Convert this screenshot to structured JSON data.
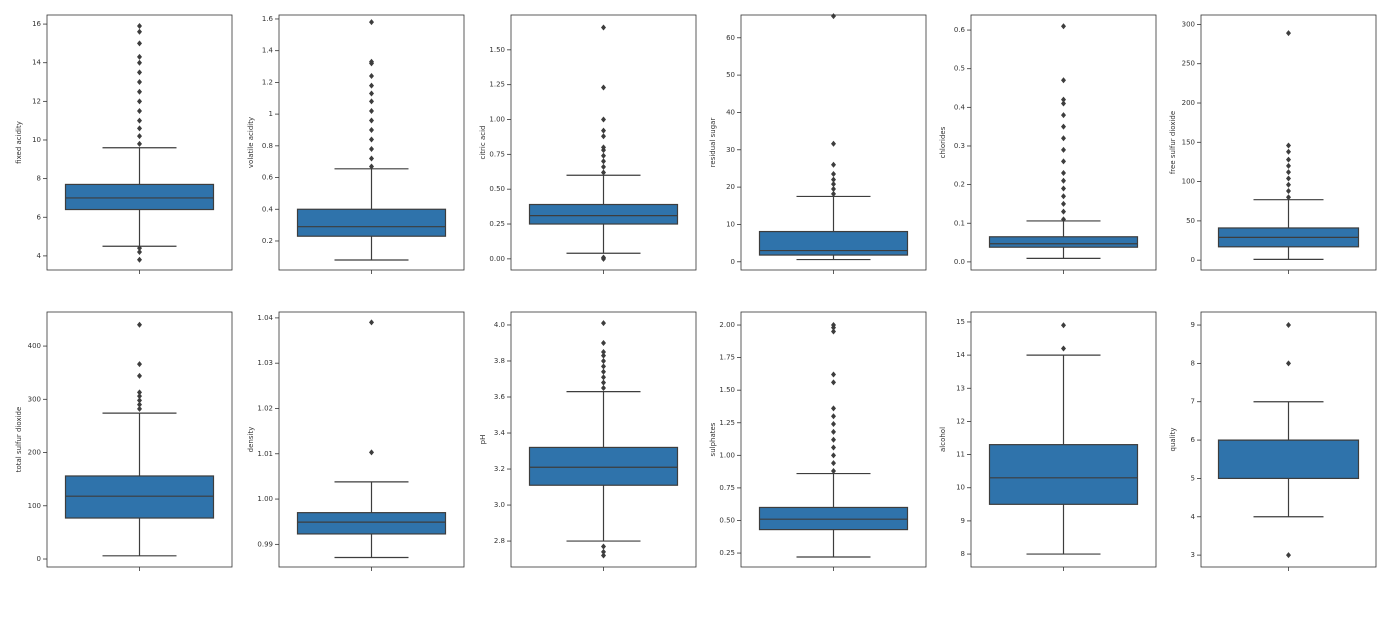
{
  "chart_data": [
    {
      "type": "box",
      "ylabel": "fixed acidity",
      "color": "#2f73ab",
      "ylim": [
        3.27,
        16.47
      ],
      "yticks": [
        4,
        6,
        8,
        10,
        12,
        14,
        16
      ],
      "whislo": 4.5,
      "q1": 6.4,
      "med": 7.0,
      "q3": 7.7,
      "whishi": 9.6,
      "fliers": [
        3.8,
        4.2,
        4.4,
        9.8,
        10.2,
        10.6,
        11.0,
        11.5,
        12.0,
        12.5,
        13.0,
        13.5,
        14.0,
        14.3,
        15.0,
        15.6,
        15.9
      ]
    },
    {
      "type": "box",
      "ylabel": "volatile acidity",
      "color": "#2f73ab",
      "ylim": [
        0.017,
        1.625
      ],
      "yticks": [
        0.2,
        0.4,
        0.6,
        0.8,
        1.0,
        1.2,
        1.4,
        1.6
      ],
      "whislo": 0.08,
      "q1": 0.23,
      "med": 0.29,
      "q3": 0.4,
      "whishi": 0.655,
      "fliers": [
        0.67,
        0.72,
        0.78,
        0.84,
        0.9,
        0.96,
        1.02,
        1.08,
        1.13,
        1.18,
        1.24,
        1.32,
        1.33,
        1.58
      ]
    },
    {
      "type": "box",
      "ylabel": "citric acid",
      "color": "#2f73ab",
      "ylim": [
        -0.08,
        1.75
      ],
      "yticks": [
        {
          "value": 0,
          "label": "0.00"
        },
        0.25,
        {
          "value": 0.5,
          "label": "0.50"
        },
        0.75,
        {
          "value": 1,
          "label": "1.00"
        },
        1.25,
        {
          "value": 1.5,
          "label": "1.50"
        }
      ],
      "whislo": 0.04,
      "q1": 0.25,
      "med": 0.31,
      "q3": 0.39,
      "whishi": 0.6,
      "fliers": [
        0,
        0.01,
        0.62,
        0.66,
        0.7,
        0.74,
        0.78,
        0.8,
        0.88,
        0.92,
        1.0,
        1.23,
        1.66
      ]
    },
    {
      "type": "box",
      "ylabel": "residual sugar",
      "color": "#2f73ab",
      "ylim": [
        -2.2,
        66.1
      ],
      "yticks": [
        0,
        10,
        20,
        30,
        40,
        50,
        60
      ],
      "whislo": 0.6,
      "q1": 1.8,
      "med": 3.0,
      "q3": 8.1,
      "whishi": 17.5,
      "fliers": [
        18.2,
        19.5,
        20.8,
        22.0,
        23.5,
        26.0,
        31.6,
        65.8
      ]
    },
    {
      "type": "box",
      "ylabel": "chlorides",
      "color": "#2f73ab",
      "ylim": [
        -0.021,
        0.639
      ],
      "yticks": [
        {
          "value": 0,
          "label": "0.0"
        },
        0.1,
        0.2,
        0.3,
        0.4,
        0.5,
        0.6
      ],
      "whislo": 0.009,
      "q1": 0.038,
      "med": 0.047,
      "q3": 0.065,
      "whishi": 0.106,
      "fliers": [
        0.11,
        0.13,
        0.15,
        0.17,
        0.19,
        0.21,
        0.23,
        0.26,
        0.29,
        0.32,
        0.35,
        0.38,
        0.41,
        0.42,
        0.47,
        0.61
      ]
    },
    {
      "type": "box",
      "ylabel": "free sulfur dioxide",
      "color": "#2f73ab",
      "ylim": [
        -12.5,
        312
      ],
      "yticks": [
        0,
        50,
        100,
        150,
        200,
        250,
        300
      ],
      "whislo": 1,
      "q1": 17,
      "med": 29,
      "q3": 41,
      "whishi": 77,
      "fliers": [
        80,
        88,
        96,
        104,
        112,
        120,
        128,
        138,
        146,
        289
      ]
    },
    {
      "type": "box",
      "ylabel": "total sulfur dioxide",
      "color": "#2f73ab",
      "ylim": [
        -15,
        464
      ],
      "yticks": [
        0,
        100,
        200,
        300,
        400
      ],
      "whislo": 6,
      "q1": 77,
      "med": 118,
      "q3": 156,
      "whishi": 274,
      "fliers": [
        282,
        290,
        298,
        306,
        313,
        344,
        366,
        440
      ]
    },
    {
      "type": "box",
      "ylabel": "density",
      "color": "#2f73ab",
      "ylim": [
        0.985,
        1.0413
      ],
      "yticks": [
        0.99,
        {
          "value": 1,
          "label": "1.00"
        },
        1.01,
        1.02,
        1.03,
        1.04
      ],
      "whislo": 0.9871,
      "q1": 0.9923,
      "med": 0.9949,
      "q3": 0.997,
      "whishi": 1.0038,
      "fliers": [
        1.0103,
        1.039
      ]
    },
    {
      "type": "box",
      "ylabel": "pH",
      "color": "#2f73ab",
      "ylim": [
        2.656,
        4.072
      ],
      "yticks": [
        2.8,
        {
          "value": 3,
          "label": "3.0"
        },
        3.2,
        3.4,
        3.6,
        3.8,
        {
          "value": 4,
          "label": "4.0"
        }
      ],
      "whislo": 2.8,
      "q1": 3.11,
      "med": 3.21,
      "q3": 3.32,
      "whishi": 3.63,
      "fliers": [
        2.72,
        2.74,
        2.77,
        3.65,
        3.68,
        3.71,
        3.74,
        3.77,
        3.8,
        3.83,
        3.85,
        3.9,
        4.01
      ]
    },
    {
      "type": "box",
      "ylabel": "sulphates",
      "color": "#2f73ab",
      "ylim": [
        0.143,
        2.1
      ],
      "yticks": [
        0.25,
        {
          "value": 0.5,
          "label": "0.50"
        },
        0.75,
        {
          "value": 1,
          "label": "1.00"
        },
        1.25,
        {
          "value": 1.5,
          "label": "1.50"
        },
        1.75,
        {
          "value": 2,
          "label": "2.00"
        }
      ],
      "whislo": 0.22,
      "q1": 0.43,
      "med": 0.51,
      "q3": 0.6,
      "whishi": 0.86,
      "fliers": [
        0.88,
        0.94,
        1.0,
        1.06,
        1.12,
        1.18,
        1.24,
        1.3,
        1.36,
        1.56,
        1.62,
        1.95,
        1.98,
        2.0
      ]
    },
    {
      "type": "box",
      "ylabel": "alcohol",
      "color": "#2f73ab",
      "ylim": [
        7.61,
        15.3
      ],
      "yticks": [
        8,
        9,
        10,
        11,
        12,
        13,
        14,
        15
      ],
      "whislo": 8.0,
      "q1": 9.5,
      "med": 10.3,
      "q3": 11.3,
      "whishi": 14.0,
      "fliers": [
        14.2,
        14.9
      ]
    },
    {
      "type": "box",
      "ylabel": "quality",
      "color": "#2f73ab",
      "ylim": [
        2.69,
        9.34
      ],
      "yticks": [
        3,
        4,
        5,
        6,
        7,
        8,
        9
      ],
      "whislo": 4,
      "q1": 5,
      "med": 6,
      "q3": 6,
      "whishi": 7,
      "fliers": [
        3,
        8,
        9
      ]
    }
  ]
}
